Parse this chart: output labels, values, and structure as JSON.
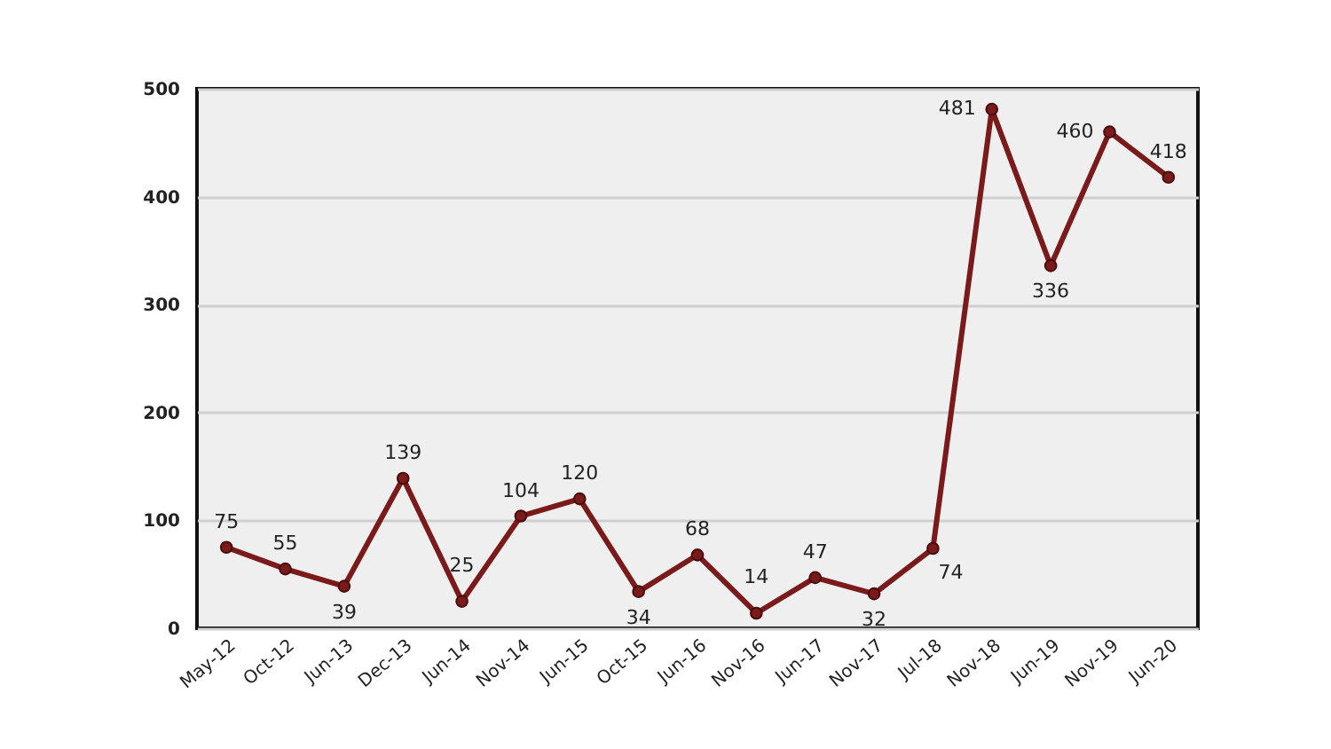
{
  "chart_data": {
    "type": "line",
    "categories": [
      "May-12",
      "Oct-12",
      "Jun-13",
      "Dec-13",
      "Jun-14",
      "Nov-14",
      "Jun-15",
      "Oct-15",
      "Jun-16",
      "Nov-16",
      "Jun-17",
      "Nov-17",
      "Jul-18",
      "Nov-18",
      "Jun-19",
      "Nov-19",
      "Jun-20"
    ],
    "series": [
      {
        "color": "#7a1a1a",
        "values": [
          75,
          55,
          39,
          139,
          25,
          104,
          120,
          34,
          68,
          14,
          47,
          32,
          74,
          481,
          336,
          460,
          418
        ]
      }
    ],
    "ylim": [
      0,
      500
    ],
    "yticks": [
      0,
      100,
      200,
      300,
      400,
      500
    ],
    "grid": "y",
    "marker": "circle",
    "line_style": "solid",
    "data_labels": true
  }
}
